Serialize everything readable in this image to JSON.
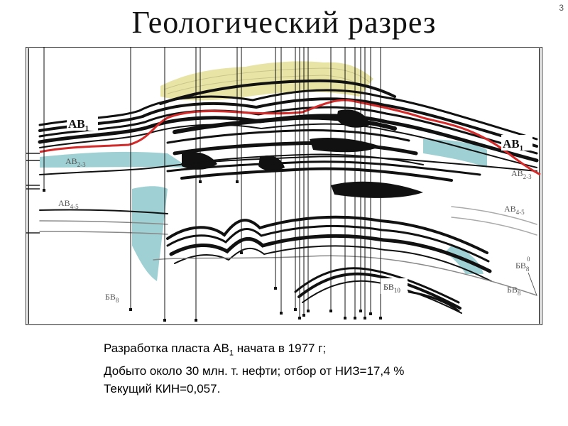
{
  "slide": {
    "number": "3",
    "title": "Геологический разрез"
  },
  "section": {
    "labels": {
      "ab1_left_main": "АВ",
      "ab1_left_sub": "1",
      "ab1_right_main": "АВ",
      "ab1_right_sub": "1",
      "ab23_left_main": "АВ",
      "ab23_left_sub": "2-3",
      "ab23_right_main": "АВ",
      "ab23_right_sub": "2-3",
      "ab45_left_main": "АВ",
      "ab45_left_sub": "4-5",
      "ab45_right_main": "АВ",
      "ab45_right_sub": "4-5",
      "bv8_left_main": "БВ",
      "bv8_left_sub": "8",
      "bv8_right_main": "БВ",
      "bv8_right_sub": "8",
      "bv80_main": "БВ",
      "bv80_sub": "8",
      "bv80_sup": "0",
      "bv10_main": "БВ",
      "bv10_sub": "10"
    },
    "colors": {
      "oil_contour": "#d42a2a",
      "gas_cap": "#e8e4a6",
      "water_zone": "#9fd0d3",
      "strata": "#111111"
    }
  },
  "caption": {
    "line1_pre": "Разработка пласта АВ",
    "line1_sub": "1",
    "line1_post": " начата в 1977 г;",
    "line2": "Добыто около 30 млн. т. нефти; отбор от НИЗ=17,4 %",
    "line3": "Текущий КИН=0,057."
  }
}
